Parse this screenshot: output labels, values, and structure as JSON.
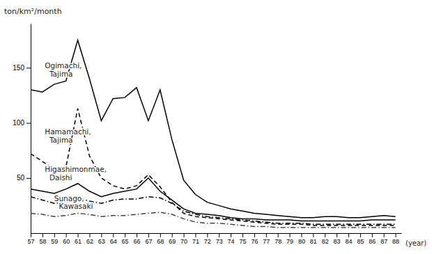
{
  "chart_data": {
    "type": "line",
    "ylabel": "ton/km²/month",
    "xlabel": "(year)",
    "x": [
      57,
      58,
      59,
      60,
      61,
      62,
      63,
      64,
      65,
      66,
      67,
      68,
      69,
      70,
      71,
      72,
      73,
      74,
      75,
      76,
      77,
      78,
      79,
      80,
      81,
      82,
      83,
      84,
      85,
      86,
      87,
      88
    ],
    "series": [
      {
        "color": "#000000",
        "line_style": "solid",
        "values": [
          130,
          128,
          135,
          138,
          175,
          140,
          102,
          122,
          123,
          132,
          102,
          130,
          85,
          48,
          35,
          28,
          25,
          22,
          20,
          18,
          17,
          16,
          15,
          14,
          14,
          15,
          15,
          14,
          14,
          15,
          16,
          15
        ]
      },
      {
        "color": "#000000",
        "line_style": "dashed",
        "values": [
          72,
          65,
          58,
          60,
          113,
          70,
          50,
          43,
          40,
          43,
          53,
          42,
          28,
          18,
          15,
          14,
          13,
          12,
          11,
          10,
          9,
          8,
          8,
          8,
          7,
          7,
          7,
          7,
          7,
          7,
          7,
          7
        ]
      },
      {
        "color": "#000000",
        "line_style": "solid",
        "values": [
          40,
          38,
          36,
          40,
          45,
          38,
          33,
          36,
          38,
          40,
          50,
          38,
          30,
          22,
          18,
          17,
          16,
          14,
          13,
          13,
          12,
          12,
          12,
          11,
          11,
          11,
          11,
          11,
          11,
          12,
          12,
          12
        ]
      },
      {
        "color": "#000000",
        "line_style": "dashdot",
        "values": [
          33,
          30,
          27,
          28,
          32,
          29,
          27,
          30,
          31,
          31,
          33,
          32,
          27,
          20,
          17,
          15,
          14,
          13,
          12,
          11,
          10,
          9,
          9,
          9,
          8,
          8,
          8,
          8,
          8,
          8,
          8,
          8
        ]
      },
      {
        "color": "#444444",
        "line_style": "dashdot",
        "values": [
          18,
          17,
          15,
          16,
          18,
          17,
          15,
          16,
          16,
          17,
          18,
          19,
          17,
          13,
          10,
          9,
          9,
          8,
          7,
          6,
          6,
          5,
          5,
          5,
          5,
          5,
          5,
          5,
          5,
          5,
          5,
          5
        ]
      }
    ],
    "xlim": [
      57,
      88.5
    ],
    "xticks": [
      57,
      58,
      59,
      60,
      61,
      62,
      63,
      64,
      65,
      66,
      67,
      68,
      69,
      70,
      71,
      72,
      73,
      74,
      75,
      76,
      77,
      78,
      79,
      80,
      81,
      82,
      83,
      84,
      85,
      86,
      87,
      88
    ],
    "ylim": [
      0,
      190
    ],
    "yticks": [
      50,
      100,
      150
    ],
    "annotations": [
      {
        "text": "Ogimachi,\n  Tajima",
        "x": 58.2,
        "y": 148
      },
      {
        "text": "Hamamachi,\n  Tajima",
        "x": 58.2,
        "y": 88
      },
      {
        "text": "Higashimonmae,\n  Daishi",
        "x": 58.2,
        "y": 54
      },
      {
        "text": "Sunago,\n  Kawasaki",
        "x": 59.0,
        "y": 28
      }
    ]
  }
}
